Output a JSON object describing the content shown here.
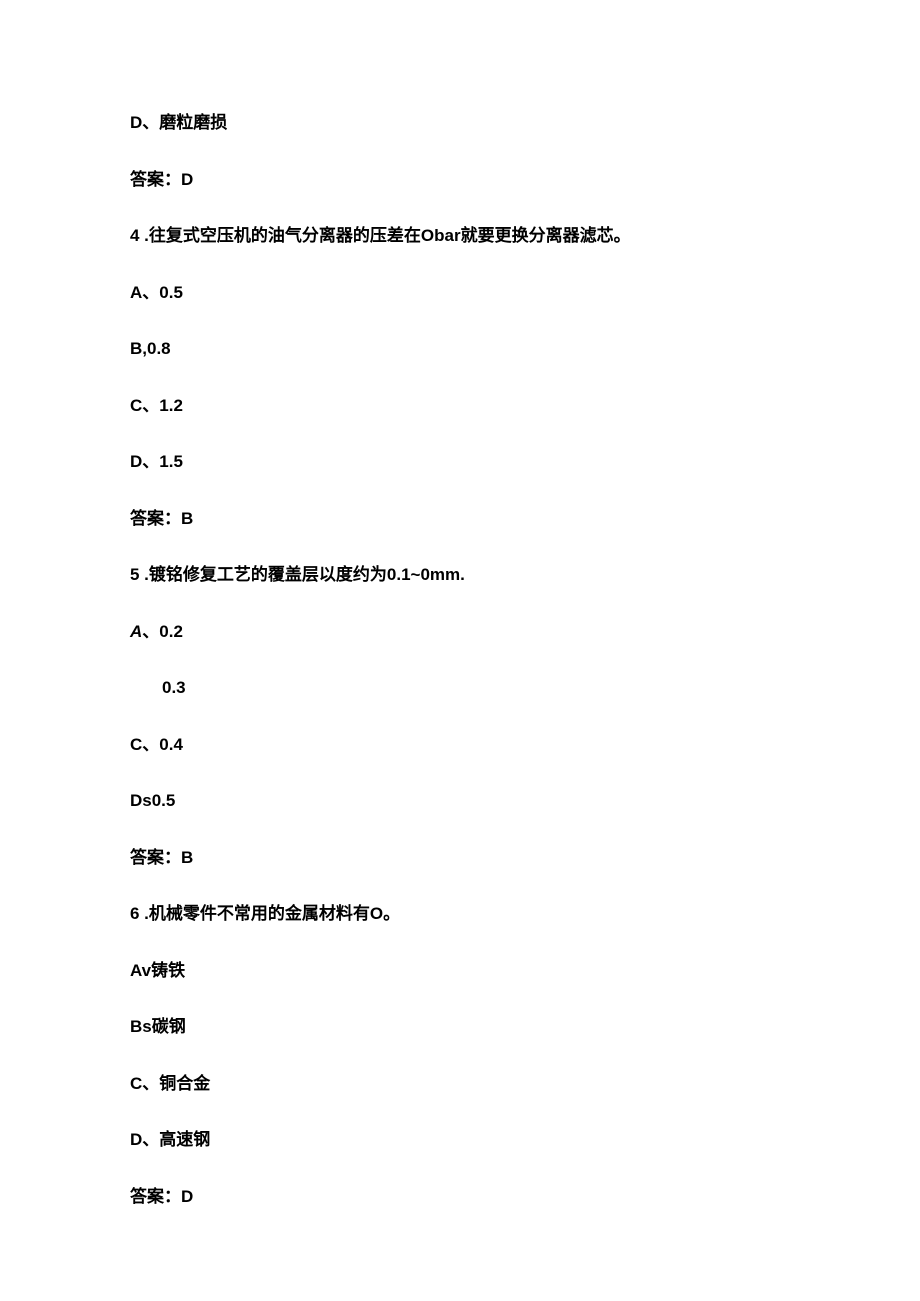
{
  "document": {
    "background_color": "#ffffff",
    "text_color": "#000000",
    "font_size": 17,
    "font_weight": 600,
    "line_spacing": 31,
    "lines": [
      {
        "text": "D、磨粒磨损",
        "indent": false
      },
      {
        "text": "答案：D",
        "indent": false
      },
      {
        "text": "4   .往复式空压机的油气分离器的压差在Obar就要更换分离器滤芯。",
        "indent": false
      },
      {
        "text": "A、0.5",
        "indent": false
      },
      {
        "text": "B,0.8",
        "indent": false
      },
      {
        "text": "C、1.2",
        "indent": false
      },
      {
        "text": "D、1.5",
        "indent": false
      },
      {
        "text": "答案：B",
        "indent": false
      },
      {
        "text": "5   .镀铭修复工艺的覆盖层以度约为0.1~0mm.",
        "indent": false
      },
      {
        "text": "A、0.2",
        "indent": false,
        "italic_first": true
      },
      {
        "text": "0.3",
        "indent": true
      },
      {
        "text": "C、0.4",
        "indent": false
      },
      {
        "text": "Ds0.5",
        "indent": false
      },
      {
        "text": "答案：B",
        "indent": false
      },
      {
        "text": "6   .机械零件不常用的金属材料有O。",
        "indent": false
      },
      {
        "text": "Av铸铁",
        "indent": false
      },
      {
        "text": "Bs碳钢",
        "indent": false
      },
      {
        "text": "C、铜合金",
        "indent": false
      },
      {
        "text": "D、高速钢",
        "indent": false
      },
      {
        "text": "答案：D",
        "indent": false
      }
    ]
  }
}
